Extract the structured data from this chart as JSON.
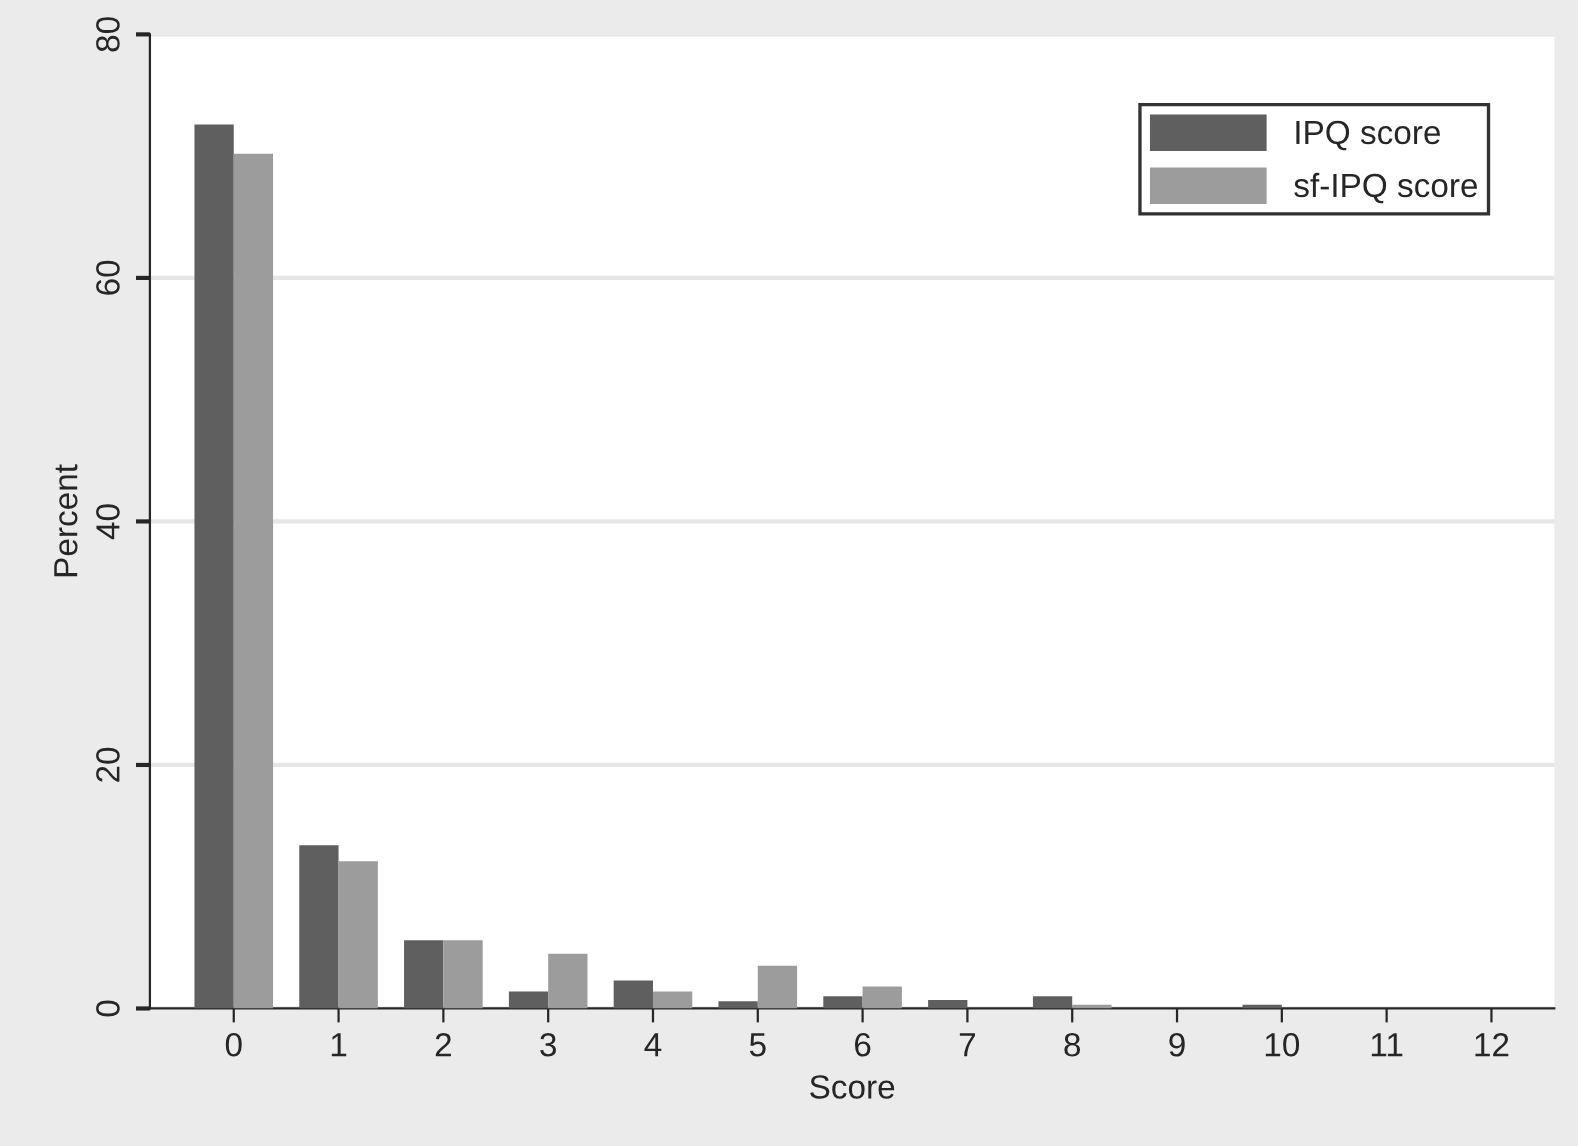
{
  "chart_data": {
    "type": "bar",
    "xlabel": "Score",
    "ylabel": "Percent",
    "categories": [
      "0",
      "1",
      "2",
      "3",
      "4",
      "5",
      "6",
      "7",
      "8",
      "9",
      "10",
      "11",
      "12"
    ],
    "series": [
      {
        "name": "IPQ score",
        "color": "#5f5f5f",
        "values": [
          72.6,
          13.4,
          5.6,
          1.4,
          2.3,
          0.6,
          1.0,
          0.7,
          1.0,
          0,
          0.3,
          0,
          0
        ]
      },
      {
        "name": "sf-IPQ score",
        "color": "#9c9c9c",
        "values": [
          70.2,
          12.1,
          5.6,
          4.5,
          1.4,
          3.5,
          1.8,
          0,
          0.3,
          0,
          0,
          0,
          0
        ]
      }
    ],
    "ylim": [
      0,
      80
    ],
    "yticks": [
      0,
      20,
      40,
      60,
      80
    ],
    "grid": "y",
    "legend": "top right"
  }
}
